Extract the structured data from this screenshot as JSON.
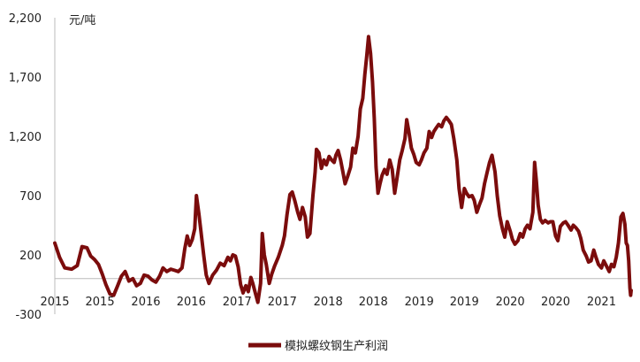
{
  "chart_data": {
    "type": "line",
    "unit_label": "元/吨",
    "ylim": [
      -300,
      2200
    ],
    "y_ticks": [
      "2,200",
      "1,700",
      "1,200",
      "700",
      "200",
      "-300"
    ],
    "y_tick_values": [
      2200,
      1700,
      1200,
      700,
      200,
      -300
    ],
    "x_tick_labels": [
      "2015",
      "2015",
      "2016",
      "2016",
      "2017",
      "2017",
      "2018",
      "2018",
      "2019",
      "2019",
      "2020",
      "2020",
      "2021"
    ],
    "x_tick_dates": [
      "2015-01-01",
      "2015-07-01",
      "2016-01-01",
      "2016-07-01",
      "2017-01-01",
      "2017-07-01",
      "2018-01-01",
      "2018-07-01",
      "2019-01-01",
      "2019-07-01",
      "2020-01-01",
      "2020-07-01",
      "2021-01-01"
    ],
    "xlim": [
      "2015-01-01",
      "2021-04-30"
    ],
    "grid": false,
    "legend_position": "bottom",
    "series": [
      {
        "name": "模拟螺纹钢生产利润",
        "color": "#7b0c0c",
        "points": [
          [
            "2015-01-01",
            300
          ],
          [
            "2015-01-20",
            180
          ],
          [
            "2015-02-10",
            90
          ],
          [
            "2015-03-10",
            80
          ],
          [
            "2015-04-01",
            110
          ],
          [
            "2015-04-20",
            270
          ],
          [
            "2015-05-10",
            260
          ],
          [
            "2015-05-25",
            190
          ],
          [
            "2015-06-10",
            160
          ],
          [
            "2015-06-25",
            120
          ],
          [
            "2015-07-10",
            40
          ],
          [
            "2015-07-25",
            -50
          ],
          [
            "2015-08-10",
            -130
          ],
          [
            "2015-08-25",
            -140
          ],
          [
            "2015-09-10",
            -60
          ],
          [
            "2015-09-25",
            20
          ],
          [
            "2015-10-10",
            60
          ],
          [
            "2015-10-25",
            -20
          ],
          [
            "2015-11-10",
            0
          ],
          [
            "2015-11-25",
            -60
          ],
          [
            "2015-12-10",
            -40
          ],
          [
            "2015-12-25",
            30
          ],
          [
            "2016-01-10",
            20
          ],
          [
            "2016-01-25",
            -10
          ],
          [
            "2016-02-10",
            -30
          ],
          [
            "2016-02-25",
            20
          ],
          [
            "2016-03-10",
            90
          ],
          [
            "2016-03-25",
            60
          ],
          [
            "2016-04-10",
            80
          ],
          [
            "2016-04-25",
            70
          ],
          [
            "2016-05-10",
            60
          ],
          [
            "2016-05-25",
            90
          ],
          [
            "2016-06-05",
            250
          ],
          [
            "2016-06-15",
            360
          ],
          [
            "2016-06-25",
            280
          ],
          [
            "2016-07-05",
            330
          ],
          [
            "2016-07-15",
            420
          ],
          [
            "2016-07-22",
            700
          ],
          [
            "2016-08-01",
            540
          ],
          [
            "2016-08-10",
            380
          ],
          [
            "2016-08-20",
            200
          ],
          [
            "2016-08-30",
            30
          ],
          [
            "2016-09-10",
            -40
          ],
          [
            "2016-09-25",
            30
          ],
          [
            "2016-10-10",
            70
          ],
          [
            "2016-10-25",
            130
          ],
          [
            "2016-11-10",
            110
          ],
          [
            "2016-11-25",
            180
          ],
          [
            "2016-12-05",
            150
          ],
          [
            "2016-12-15",
            200
          ],
          [
            "2016-12-25",
            190
          ],
          [
            "2017-01-05",
            100
          ],
          [
            "2017-01-15",
            -50
          ],
          [
            "2017-01-25",
            -120
          ],
          [
            "2017-02-05",
            -60
          ],
          [
            "2017-02-15",
            -110
          ],
          [
            "2017-02-25",
            10
          ],
          [
            "2017-03-05",
            -40
          ],
          [
            "2017-03-15",
            -120
          ],
          [
            "2017-03-25",
            -200
          ],
          [
            "2017-04-05",
            -40
          ],
          [
            "2017-04-12",
            380
          ],
          [
            "2017-04-20",
            200
          ],
          [
            "2017-04-28",
            120
          ],
          [
            "2017-05-10",
            -40
          ],
          [
            "2017-05-20",
            40
          ],
          [
            "2017-06-01",
            110
          ],
          [
            "2017-06-15",
            180
          ],
          [
            "2017-07-01",
            280
          ],
          [
            "2017-07-10",
            360
          ],
          [
            "2017-07-20",
            540
          ],
          [
            "2017-08-01",
            710
          ],
          [
            "2017-08-10",
            730
          ],
          [
            "2017-08-20",
            660
          ],
          [
            "2017-09-01",
            560
          ],
          [
            "2017-09-10",
            500
          ],
          [
            "2017-09-20",
            600
          ],
          [
            "2017-10-01",
            520
          ],
          [
            "2017-10-10",
            350
          ],
          [
            "2017-10-20",
            380
          ],
          [
            "2017-11-01",
            700
          ],
          [
            "2017-11-10",
            900
          ],
          [
            "2017-11-15",
            1090
          ],
          [
            "2017-11-25",
            1060
          ],
          [
            "2017-12-05",
            930
          ],
          [
            "2017-12-15",
            1000
          ],
          [
            "2017-12-25",
            960
          ],
          [
            "2018-01-05",
            1030
          ],
          [
            "2018-01-15",
            1000
          ],
          [
            "2018-01-25",
            980
          ],
          [
            "2018-02-01",
            1040
          ],
          [
            "2018-02-10",
            1080
          ],
          [
            "2018-02-20",
            1000
          ],
          [
            "2018-03-01",
            900
          ],
          [
            "2018-03-10",
            800
          ],
          [
            "2018-03-20",
            860
          ],
          [
            "2018-04-01",
            940
          ],
          [
            "2018-04-10",
            1100
          ],
          [
            "2018-04-20",
            1060
          ],
          [
            "2018-05-01",
            1200
          ],
          [
            "2018-05-10",
            1430
          ],
          [
            "2018-05-20",
            1520
          ],
          [
            "2018-05-28",
            1720
          ],
          [
            "2018-06-05",
            1880
          ],
          [
            "2018-06-12",
            2040
          ],
          [
            "2018-06-20",
            1900
          ],
          [
            "2018-06-28",
            1660
          ],
          [
            "2018-07-05",
            1350
          ],
          [
            "2018-07-12",
            940
          ],
          [
            "2018-07-20",
            720
          ],
          [
            "2018-07-28",
            800
          ],
          [
            "2018-08-05",
            870
          ],
          [
            "2018-08-15",
            920
          ],
          [
            "2018-08-25",
            880
          ],
          [
            "2018-09-05",
            1000
          ],
          [
            "2018-09-15",
            920
          ],
          [
            "2018-09-25",
            720
          ],
          [
            "2018-10-05",
            860
          ],
          [
            "2018-10-15",
            1000
          ],
          [
            "2018-10-25",
            1080
          ],
          [
            "2018-11-05",
            1180
          ],
          [
            "2018-11-12",
            1340
          ],
          [
            "2018-11-20",
            1250
          ],
          [
            "2018-12-01",
            1100
          ],
          [
            "2018-12-10",
            1050
          ],
          [
            "2018-12-20",
            980
          ],
          [
            "2019-01-01",
            960
          ],
          [
            "2019-01-10",
            1000
          ],
          [
            "2019-01-20",
            1060
          ],
          [
            "2019-02-01",
            1100
          ],
          [
            "2019-02-10",
            1240
          ],
          [
            "2019-02-20",
            1190
          ],
          [
            "2019-03-01",
            1240
          ],
          [
            "2019-03-10",
            1270
          ],
          [
            "2019-03-20",
            1300
          ],
          [
            "2019-04-01",
            1280
          ],
          [
            "2019-04-10",
            1330
          ],
          [
            "2019-04-20",
            1360
          ],
          [
            "2019-05-01",
            1330
          ],
          [
            "2019-05-10",
            1300
          ],
          [
            "2019-05-20",
            1180
          ],
          [
            "2019-06-01",
            1000
          ],
          [
            "2019-06-10",
            760
          ],
          [
            "2019-06-20",
            600
          ],
          [
            "2019-07-01",
            760
          ],
          [
            "2019-07-10",
            720
          ],
          [
            "2019-07-20",
            690
          ],
          [
            "2019-08-01",
            700
          ],
          [
            "2019-08-10",
            660
          ],
          [
            "2019-08-20",
            560
          ],
          [
            "2019-09-01",
            630
          ],
          [
            "2019-09-10",
            680
          ],
          [
            "2019-09-20",
            800
          ],
          [
            "2019-10-01",
            900
          ],
          [
            "2019-10-10",
            980
          ],
          [
            "2019-10-20",
            1040
          ],
          [
            "2019-11-01",
            900
          ],
          [
            "2019-11-10",
            700
          ],
          [
            "2019-11-20",
            530
          ],
          [
            "2019-12-01",
            420
          ],
          [
            "2019-12-10",
            350
          ],
          [
            "2019-12-20",
            480
          ],
          [
            "2020-01-01",
            400
          ],
          [
            "2020-01-10",
            330
          ],
          [
            "2020-01-20",
            290
          ],
          [
            "2020-02-01",
            320
          ],
          [
            "2020-02-10",
            380
          ],
          [
            "2020-02-20",
            350
          ],
          [
            "2020-03-01",
            420
          ],
          [
            "2020-03-10",
            450
          ],
          [
            "2020-03-20",
            420
          ],
          [
            "2020-04-01",
            560
          ],
          [
            "2020-04-08",
            980
          ],
          [
            "2020-04-15",
            820
          ],
          [
            "2020-04-22",
            620
          ],
          [
            "2020-05-01",
            500
          ],
          [
            "2020-05-10",
            470
          ],
          [
            "2020-05-20",
            490
          ],
          [
            "2020-06-01",
            470
          ],
          [
            "2020-06-10",
            480
          ],
          [
            "2020-06-20",
            480
          ],
          [
            "2020-07-01",
            360
          ],
          [
            "2020-07-10",
            320
          ],
          [
            "2020-07-20",
            440
          ],
          [
            "2020-08-01",
            470
          ],
          [
            "2020-08-10",
            480
          ],
          [
            "2020-08-20",
            450
          ],
          [
            "2020-09-01",
            410
          ],
          [
            "2020-09-10",
            450
          ],
          [
            "2020-09-20",
            430
          ],
          [
            "2020-10-01",
            400
          ],
          [
            "2020-10-10",
            340
          ],
          [
            "2020-10-20",
            240
          ],
          [
            "2020-11-01",
            190
          ],
          [
            "2020-11-10",
            140
          ],
          [
            "2020-11-20",
            150
          ],
          [
            "2020-12-01",
            240
          ],
          [
            "2020-12-10",
            180
          ],
          [
            "2020-12-20",
            120
          ],
          [
            "2021-01-01",
            90
          ],
          [
            "2021-01-10",
            150
          ],
          [
            "2021-01-20",
            110
          ],
          [
            "2021-02-01",
            60
          ],
          [
            "2021-02-10",
            120
          ],
          [
            "2021-02-20",
            100
          ],
          [
            "2021-03-01",
            180
          ],
          [
            "2021-03-10",
            300
          ],
          [
            "2021-03-20",
            520
          ],
          [
            "2021-03-28",
            550
          ],
          [
            "2021-04-05",
            460
          ],
          [
            "2021-04-10",
            300
          ],
          [
            "2021-04-15",
            280
          ],
          [
            "2021-04-20",
            150
          ],
          [
            "2021-04-25",
            -80
          ],
          [
            "2021-04-28",
            -140
          ],
          [
            "2021-04-30",
            -100
          ]
        ]
      }
    ]
  }
}
